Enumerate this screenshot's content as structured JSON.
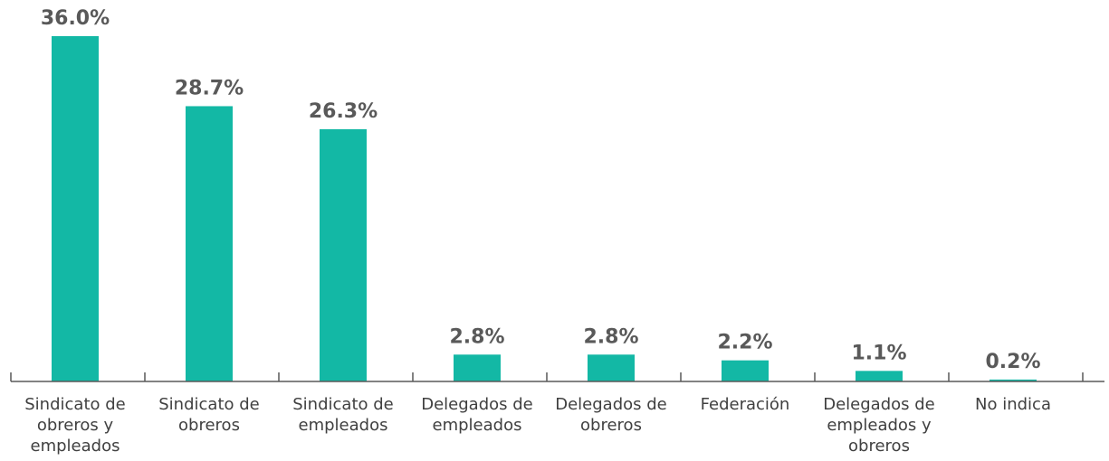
{
  "chart_data": {
    "type": "bar",
    "categories": [
      "Sindicato de obreros y empleados",
      "Sindicato de obreros",
      "Sindicato de empleados",
      "Delegados de empleados",
      "Delegados de obreros",
      "Federación",
      "Delegados de empleados y obreros",
      "No indica"
    ],
    "values": [
      36.0,
      28.7,
      26.3,
      2.8,
      2.8,
      2.2,
      1.1,
      0.2
    ],
    "value_labels": [
      "36.0%",
      "28.7%",
      "26.3%",
      "2.8%",
      "2.8%",
      "2.2%",
      "1.1%",
      "0.2%"
    ],
    "color": "#13b8a5"
  }
}
